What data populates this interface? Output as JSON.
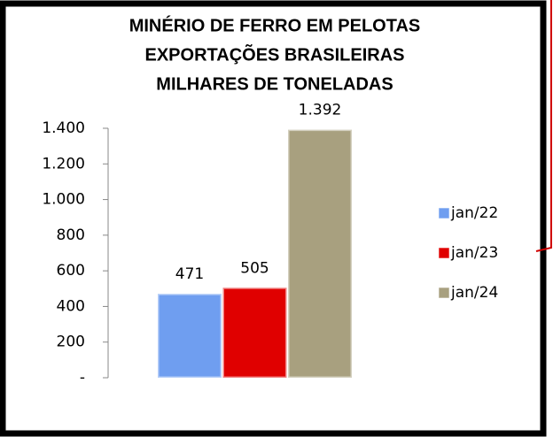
{
  "chart_data": {
    "type": "bar",
    "title": [
      "MINÉRIO DE FERRO EM PELOTAS",
      "EXPORTAÇÕES BRASILEIRAS",
      "MILHARES DE TONELADAS"
    ],
    "categories": [
      null
    ],
    "series": [
      {
        "name": "jan/22",
        "color": "#6f9ef0",
        "values": [
          471
        ],
        "value_labels": [
          "471"
        ]
      },
      {
        "name": "jan/23",
        "color": "#e00000",
        "values": [
          505
        ],
        "value_labels": [
          "505"
        ]
      },
      {
        "name": "jan/24",
        "color": "#a8a07f",
        "values": [
          1392
        ],
        "value_labels": [
          "1.392"
        ]
      }
    ],
    "ylim": [
      0,
      1400
    ],
    "yticks": [
      {
        "value": 0,
        "label": "-"
      },
      200,
      400,
      600,
      800,
      {
        "value": 1000,
        "label": "1.000"
      },
      {
        "value": 1200,
        "label": "1.200"
      },
      {
        "value": 1400,
        "label": "1.400"
      }
    ],
    "legend": "right"
  }
}
